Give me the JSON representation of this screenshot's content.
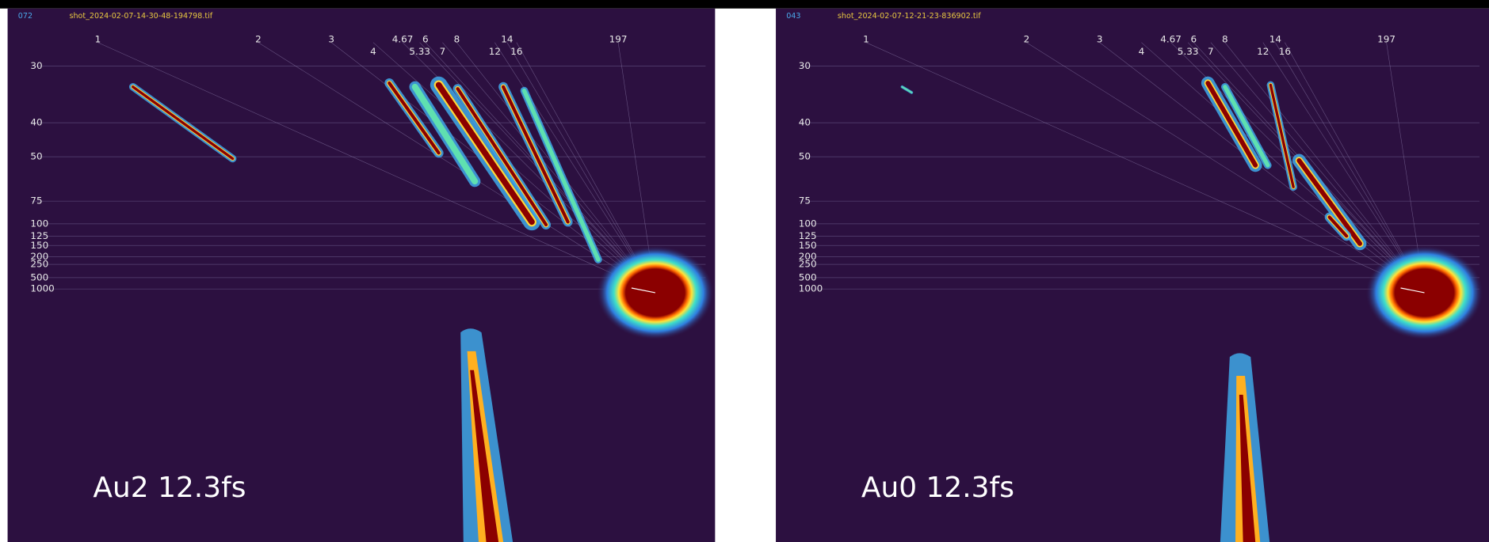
{
  "panels": [
    {
      "id": "072",
      "file": "shot_2024-02-07-14-30-48-194798.tif",
      "label": "Au2 12.3fs"
    },
    {
      "id": "043",
      "file": "shot_2024-02-07-12-21-23-836902.tif",
      "label": "Au0 12.3fs"
    }
  ],
  "parabola_labels_top": [
    "1",
    "2",
    "3",
    "4.67",
    "6",
    "8",
    "14",
    "197"
  ],
  "parabola_labels_bottom": [
    "4",
    "5.33",
    "7",
    "12",
    "16"
  ],
  "y_labels": [
    "30",
    "40",
    "50",
    "75",
    "100",
    "125",
    "150",
    "200",
    "250",
    "500",
    "1000"
  ]
}
